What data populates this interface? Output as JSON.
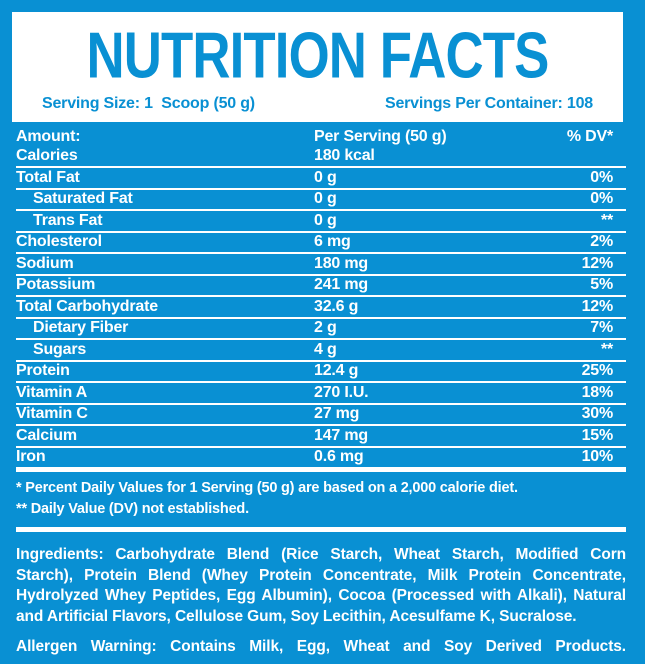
{
  "colors": {
    "background_blue": "#0990D3",
    "panel_white": "#FFFFFF",
    "header_text_blue": "#0990D3",
    "table_text_white": "#FFFFFF"
  },
  "header": {
    "title": "NUTRITION FACTS",
    "serving_size": "Serving Size: 1  Scoop (50 g)",
    "servings_per_container": "Servings Per Container: 108"
  },
  "table": {
    "header": {
      "amount": "Amount:",
      "per_serving": "Per Serving (50 g)",
      "dv": "% DV*"
    },
    "rows": [
      {
        "name": "Calories",
        "value": "180 kcal",
        "dv": "",
        "indent": false
      },
      {
        "name": "Total Fat",
        "value": "0 g",
        "dv": "0%",
        "indent": false
      },
      {
        "name": "Saturated Fat",
        "value": "0 g",
        "dv": "0%",
        "indent": true
      },
      {
        "name": "Trans Fat",
        "value": "0 g",
        "dv": "**",
        "indent": true
      },
      {
        "name": "Cholesterol",
        "value": "6 mg",
        "dv": "2%",
        "indent": false
      },
      {
        "name": "Sodium",
        "value": "180 mg",
        "dv": "12%",
        "indent": false
      },
      {
        "name": "Potassium",
        "value": "241 mg",
        "dv": "5%",
        "indent": false
      },
      {
        "name": "Total Carbohydrate",
        "value": "32.6 g",
        "dv": "12%",
        "indent": false
      },
      {
        "name": "Dietary Fiber",
        "value": "2 g",
        "dv": "7%",
        "indent": true
      },
      {
        "name": "Sugars",
        "value": "4 g",
        "dv": "**",
        "indent": true
      },
      {
        "name": "Protein",
        "value": "12.4 g",
        "dv": "25%",
        "indent": false
      },
      {
        "name": "Vitamin A",
        "value": "270 I.U.",
        "dv": "18%",
        "indent": false
      },
      {
        "name": "Vitamin C",
        "value": "27 mg",
        "dv": "30%",
        "indent": false
      },
      {
        "name": "Calcium",
        "value": "147 mg",
        "dv": "15%",
        "indent": false
      },
      {
        "name": "Iron",
        "value": "0.6 mg",
        "dv": "10%",
        "indent": false
      }
    ]
  },
  "footnotes": [
    "* Percent Daily Values for 1 Serving (50 g) are based on a 2,000 calorie diet.",
    "** Daily Value (DV) not established."
  ],
  "ingredients": "Ingredients: Carbohydrate Blend (Rice Starch, Wheat Starch, Modified Corn Starch), Protein Blend (Whey Protein Concentrate, Milk Protein Concentrate, Hydrolyzed Whey Peptides, Egg Albumin), Cocoa (Processed with Alkali), Natural and Artificial Flavors, Cellulose Gum, Soy Lecithin, Acesulfame K, Sucralose.",
  "allergen": "Allergen Warning: Contains Milk, Egg, Wheat and Soy Derived Products."
}
